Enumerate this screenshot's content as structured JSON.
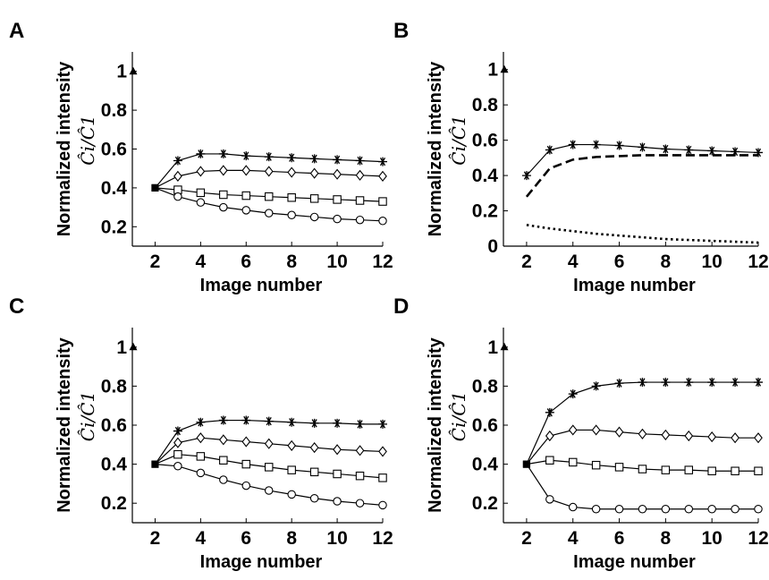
{
  "chart_data": [
    {
      "type": "line",
      "panel": "A",
      "xlabel": "Image number",
      "ylabel": "Normalized intensity",
      "ylabel_formula": "Ĉi/Ĉ1",
      "xlim": [
        1,
        12
      ],
      "ylim": [
        0.1,
        1.1
      ],
      "xticks": [
        "2",
        "4",
        "6",
        "8",
        "10",
        "12"
      ],
      "yticks": [
        "0.2",
        "0.4",
        "0.6",
        "0.8",
        "1"
      ],
      "reference_marker": {
        "x": 1,
        "y": 1,
        "shape": "triangle"
      },
      "series": [
        {
          "marker": "star",
          "line": "solid",
          "x": [
            2,
            3,
            4,
            5,
            6,
            7,
            8,
            9,
            10,
            11,
            12
          ],
          "y": [
            0.4,
            0.54,
            0.575,
            0.575,
            0.565,
            0.56,
            0.555,
            0.55,
            0.545,
            0.54,
            0.535
          ]
        },
        {
          "marker": "diamond",
          "line": "solid",
          "x": [
            2,
            3,
            4,
            5,
            6,
            7,
            8,
            9,
            10,
            11,
            12
          ],
          "y": [
            0.4,
            0.46,
            0.485,
            0.49,
            0.49,
            0.485,
            0.48,
            0.475,
            0.47,
            0.465,
            0.46
          ]
        },
        {
          "marker": "square",
          "line": "solid",
          "x": [
            2,
            3,
            4,
            5,
            6,
            7,
            8,
            9,
            10,
            11,
            12
          ],
          "y": [
            0.4,
            0.39,
            0.375,
            0.365,
            0.36,
            0.355,
            0.35,
            0.345,
            0.34,
            0.335,
            0.33
          ]
        },
        {
          "marker": "circle",
          "line": "solid",
          "x": [
            2,
            3,
            4,
            5,
            6,
            7,
            8,
            9,
            10,
            11,
            12
          ],
          "y": [
            0.4,
            0.355,
            0.325,
            0.3,
            0.285,
            0.27,
            0.26,
            0.25,
            0.24,
            0.235,
            0.23
          ]
        }
      ]
    },
    {
      "type": "line",
      "panel": "B",
      "xlabel": "Image number",
      "ylabel": "Normalized intensity",
      "ylabel_formula": "Ĉi/Ĉ1",
      "xlim": [
        1,
        12
      ],
      "ylim": [
        0,
        1.1
      ],
      "xticks": [
        "2",
        "4",
        "6",
        "8",
        "10",
        "12"
      ],
      "yticks": [
        "0",
        "0.2",
        "0.4",
        "0.6",
        "0.8",
        "1"
      ],
      "reference_marker": {
        "x": 1,
        "y": 1,
        "shape": "triangle"
      },
      "series": [
        {
          "marker": "star",
          "line": "solid",
          "x": [
            2,
            3,
            4,
            5,
            6,
            7,
            8,
            9,
            10,
            11,
            12
          ],
          "y": [
            0.4,
            0.545,
            0.575,
            0.575,
            0.57,
            0.56,
            0.55,
            0.545,
            0.54,
            0.535,
            0.53
          ]
        },
        {
          "marker": "none",
          "line": "dashed",
          "x": [
            2,
            3,
            4,
            5,
            6,
            7,
            8,
            9,
            10,
            11,
            12
          ],
          "y": [
            0.28,
            0.44,
            0.49,
            0.505,
            0.51,
            0.515,
            0.515,
            0.515,
            0.515,
            0.515,
            0.515
          ]
        },
        {
          "marker": "none",
          "line": "dotted",
          "x": [
            2,
            3,
            4,
            5,
            6,
            7,
            8,
            9,
            10,
            11,
            12
          ],
          "y": [
            0.12,
            0.1,
            0.085,
            0.07,
            0.06,
            0.05,
            0.04,
            0.035,
            0.03,
            0.025,
            0.02
          ]
        }
      ]
    },
    {
      "type": "line",
      "panel": "C",
      "xlabel": "Image number",
      "ylabel": "Normalized intensity",
      "ylabel_formula": "Ĉi/Ĉ1",
      "xlim": [
        1,
        12
      ],
      "ylim": [
        0.1,
        1.1
      ],
      "xticks": [
        "2",
        "4",
        "6",
        "8",
        "10",
        "12"
      ],
      "yticks": [
        "0.2",
        "0.4",
        "0.6",
        "0.8",
        "1"
      ],
      "reference_marker": {
        "x": 1,
        "y": 1,
        "shape": "triangle"
      },
      "series": [
        {
          "marker": "star",
          "line": "solid",
          "x": [
            2,
            3,
            4,
            5,
            6,
            7,
            8,
            9,
            10,
            11,
            12
          ],
          "y": [
            0.4,
            0.57,
            0.615,
            0.625,
            0.625,
            0.62,
            0.615,
            0.61,
            0.61,
            0.605,
            0.605
          ]
        },
        {
          "marker": "diamond",
          "line": "solid",
          "x": [
            2,
            3,
            4,
            5,
            6,
            7,
            8,
            9,
            10,
            11,
            12
          ],
          "y": [
            0.4,
            0.51,
            0.535,
            0.525,
            0.515,
            0.505,
            0.495,
            0.485,
            0.475,
            0.47,
            0.465
          ]
        },
        {
          "marker": "square",
          "line": "solid",
          "x": [
            2,
            3,
            4,
            5,
            6,
            7,
            8,
            9,
            10,
            11,
            12
          ],
          "y": [
            0.4,
            0.45,
            0.44,
            0.42,
            0.4,
            0.385,
            0.37,
            0.36,
            0.35,
            0.34,
            0.33
          ]
        },
        {
          "marker": "circle",
          "line": "solid",
          "x": [
            2,
            3,
            4,
            5,
            6,
            7,
            8,
            9,
            10,
            11,
            12
          ],
          "y": [
            0.4,
            0.39,
            0.355,
            0.32,
            0.29,
            0.265,
            0.245,
            0.225,
            0.21,
            0.2,
            0.19
          ]
        }
      ]
    },
    {
      "type": "line",
      "panel": "D",
      "xlabel": "Image number",
      "ylabel": "Normalized intensity",
      "ylabel_formula": "Ĉi/Ĉ1",
      "xlim": [
        1,
        12
      ],
      "ylim": [
        0.1,
        1.1
      ],
      "xticks": [
        "2",
        "4",
        "6",
        "8",
        "10",
        "12"
      ],
      "yticks": [
        "0.2",
        "0.4",
        "0.6",
        "0.8",
        "1"
      ],
      "reference_marker": {
        "x": 1,
        "y": 1,
        "shape": "triangle"
      },
      "series": [
        {
          "marker": "star",
          "line": "solid",
          "x": [
            2,
            3,
            4,
            5,
            6,
            7,
            8,
            9,
            10,
            11,
            12
          ],
          "y": [
            0.4,
            0.665,
            0.76,
            0.8,
            0.815,
            0.82,
            0.82,
            0.82,
            0.82,
            0.82,
            0.82
          ]
        },
        {
          "marker": "diamond",
          "line": "solid",
          "x": [
            2,
            3,
            4,
            5,
            6,
            7,
            8,
            9,
            10,
            11,
            12
          ],
          "y": [
            0.4,
            0.545,
            0.575,
            0.575,
            0.565,
            0.555,
            0.55,
            0.545,
            0.54,
            0.535,
            0.535
          ]
        },
        {
          "marker": "square",
          "line": "solid",
          "x": [
            2,
            3,
            4,
            5,
            6,
            7,
            8,
            9,
            10,
            11,
            12
          ],
          "y": [
            0.4,
            0.42,
            0.41,
            0.395,
            0.385,
            0.375,
            0.37,
            0.37,
            0.365,
            0.365,
            0.365
          ]
        },
        {
          "marker": "circle",
          "line": "solid",
          "x": [
            2,
            3,
            4,
            5,
            6,
            7,
            8,
            9,
            10,
            11,
            12
          ],
          "y": [
            0.4,
            0.22,
            0.18,
            0.17,
            0.17,
            0.17,
            0.17,
            0.17,
            0.17,
            0.17,
            0.17
          ]
        }
      ]
    }
  ]
}
